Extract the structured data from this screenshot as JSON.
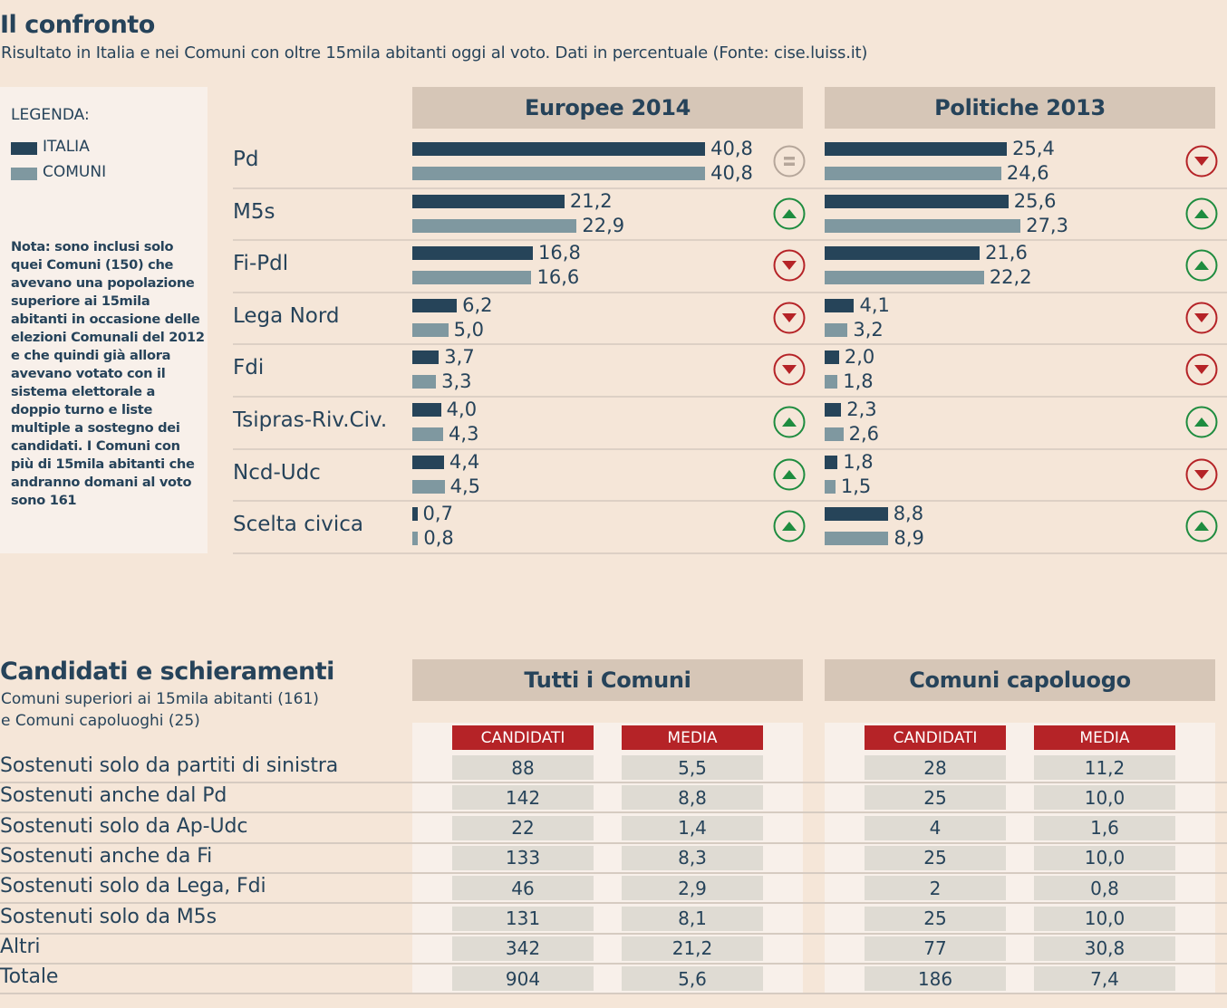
{
  "section1": {
    "title": "Il confronto",
    "subtitle": "Risultato in Italia e nei Comuni con oltre 15mila abitanti oggi al voto. Dati in percentuale (Fonte: cise.luiss.it)",
    "legend": {
      "title": "LEGENDA:",
      "items": [
        {
          "label": "ITALIA",
          "color": "#264459"
        },
        {
          "label": "COMUNI",
          "color": "#7f98a0"
        }
      ]
    },
    "note": "Nota: sono inclusi solo quei Comuni (150) che avevano una popolazione superiore ai 15mila abitanti in occasione delle elezioni Comunali del 2012 e che quindi già allora avevano votato con il sistema elettorale a doppio turno e liste multiple a sostegno dei candidati. I Comuni con più di 15mila abitanti che andranno domani al voto sono 161",
    "headers": [
      "Europee 2014",
      "Politiche 2013"
    ]
  },
  "chart_data": {
    "type": "bar",
    "orientation": "horizontal",
    "title": "Il confronto",
    "subtitle": "Risultato in Italia e nei Comuni con oltre 15mila abitanti oggi al voto. Dati in percentuale (Fonte: cise.luiss.it)",
    "unit": "%",
    "categories": [
      "Pd",
      "M5s",
      "Fi-Pdl",
      "Lega Nord",
      "Fdi",
      "Tsipras-Riv.Civ.",
      "Ncd-Udc",
      "Scelta civica"
    ],
    "panels": [
      {
        "name": "Europee 2014",
        "series": [
          {
            "name": "ITALIA",
            "values": [
              40.8,
              21.2,
              16.8,
              6.2,
              3.7,
              4.0,
              4.4,
              0.7
            ],
            "labels": [
              "40,8",
              "21,2",
              "16,8",
              "6,2",
              "3,7",
              "4,0",
              "4,4",
              "0,7"
            ]
          },
          {
            "name": "COMUNI",
            "values": [
              40.8,
              22.9,
              16.6,
              5.0,
              3.3,
              4.3,
              4.5,
              0.8
            ],
            "labels": [
              "40,8",
              "22,9",
              "16,6",
              "5,0",
              "3,3",
              "4,3",
              "4,5",
              "0,8"
            ]
          }
        ],
        "trend": [
          "equal",
          "up",
          "down",
          "down",
          "down",
          "up",
          "up",
          "up"
        ]
      },
      {
        "name": "Politiche 2013",
        "series": [
          {
            "name": "ITALIA",
            "values": [
              25.4,
              25.6,
              21.6,
              4.1,
              2.0,
              2.3,
              1.8,
              8.8
            ],
            "labels": [
              "25,4",
              "25,6",
              "21,6",
              "4,1",
              "2,0",
              "2,3",
              "1,8",
              "8,8"
            ]
          },
          {
            "name": "COMUNI",
            "values": [
              24.6,
              27.3,
              22.2,
              3.2,
              1.8,
              2.6,
              1.5,
              8.9
            ],
            "labels": [
              "24,6",
              "27,3",
              "22,2",
              "3,2",
              "1,8",
              "2,6",
              "1,5",
              "8,9"
            ]
          }
        ],
        "trend": [
          "down",
          "up",
          "up",
          "down",
          "down",
          "up",
          "down",
          "up"
        ]
      }
    ],
    "xlim": [
      0,
      45
    ],
    "legend": "left",
    "grid": false,
    "colors": {
      "italia": "#264459",
      "comuni": "#7f98a0",
      "up": "#1e8c3f",
      "down": "#b52327",
      "equal": "#b5a69a"
    }
  },
  "section2": {
    "title": "Candidati e schieramenti",
    "subtitle_lines": [
      "Comuni superiori ai 15mila abitanti (161)",
      "e Comuni capoluoghi (25)"
    ],
    "panels": [
      {
        "title": "Tutti i Comuni",
        "columns": [
          "CANDIDATI",
          "MEDIA"
        ]
      },
      {
        "title": "Comuni capoluogo",
        "columns": [
          "CANDIDATI",
          "MEDIA"
        ]
      }
    ],
    "rows": [
      {
        "label": "Sostenuti solo da partiti di sinistra",
        "tutti": [
          "88",
          "5,5"
        ],
        "capoluogo": [
          "28",
          "11,2"
        ]
      },
      {
        "label": "Sostenuti anche dal Pd",
        "tutti": [
          "142",
          "8,8"
        ],
        "capoluogo": [
          "25",
          "10,0"
        ]
      },
      {
        "label": "Sostenuti solo da Ap-Udc",
        "tutti": [
          "22",
          "1,4"
        ],
        "capoluogo": [
          "4",
          "1,6"
        ]
      },
      {
        "label": "Sostenuti anche da Fi",
        "tutti": [
          "133",
          "8,3"
        ],
        "capoluogo": [
          "25",
          "10,0"
        ]
      },
      {
        "label": "Sostenuti solo da Lega, Fdi",
        "tutti": [
          "46",
          "2,9"
        ],
        "capoluogo": [
          "2",
          "0,8"
        ]
      },
      {
        "label": "Sostenuti solo da M5s",
        "tutti": [
          "131",
          "8,1"
        ],
        "capoluogo": [
          "25",
          "10,0"
        ]
      },
      {
        "label": "Altri",
        "tutti": [
          "342",
          "21,2"
        ],
        "capoluogo": [
          "77",
          "30,8"
        ]
      },
      {
        "label": "Totale",
        "tutti": [
          "904",
          "5,6"
        ],
        "capoluogo": [
          "186",
          "7,4"
        ]
      }
    ]
  }
}
